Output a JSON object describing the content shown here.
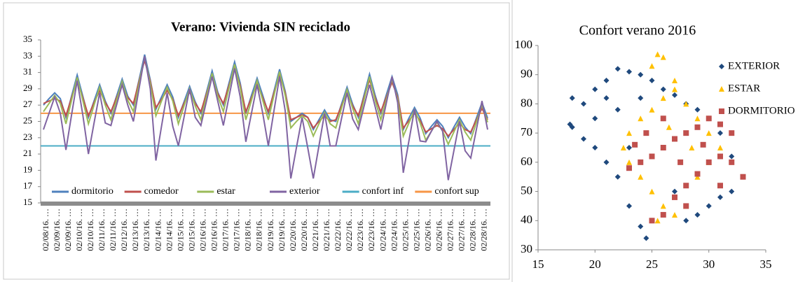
{
  "chart_data": [
    {
      "type": "line",
      "title": "Verano:  Vivienda  SIN reciclado",
      "categories": [
        "02/08/16. …",
        null,
        "02/09/16. …",
        null,
        "02/09/16. …",
        null,
        "02/10/16. …",
        null,
        "02/10/16. …",
        null,
        "02/11/16. …",
        null,
        "02/11/16. …",
        null,
        "02/12/16. …",
        null,
        "02/13/16. …",
        null,
        "02/13/16. …",
        null,
        "02/14/16. …",
        null,
        "02/14/16. …",
        null,
        "02/15/16. …",
        null,
        "02/15/16. …",
        null,
        "02/16/16. …",
        null,
        "02/16/16. …",
        null,
        "02/17/16. …",
        null,
        "02/17/16. …",
        null,
        "02/18/16. …",
        null,
        "02/18/16. …",
        null,
        "02/19/16. …",
        null,
        "02/19/16. …",
        null,
        "02/20/16. …",
        null,
        "02/20/16. …",
        null,
        "02/21/16. …",
        null,
        "02/21/16. …",
        null,
        "02/22/16. …",
        null,
        "02/22/16. …",
        null,
        "02/23/16. …",
        null,
        "02/23/16. …",
        null,
        "02/24/16. …",
        null,
        "02/24/16. …",
        null,
        "02/25/16. …",
        null,
        "02/25/16. …",
        null,
        "02/26/16. …",
        null,
        "02/26/16. …",
        null,
        "02/27/16. …",
        null,
        "02/27/16. …",
        null,
        "02/28/16. …",
        null,
        "02/28/16. …",
        null
      ],
      "series": [
        {
          "name": "dormitorio",
          "color": "#4f81bd",
          "values": [
            27,
            27.8,
            28.5,
            27.8,
            25.5,
            28.1,
            30.7,
            28.1,
            25.5,
            27.5,
            29.5,
            27.5,
            26,
            28.1,
            30.2,
            28.1,
            27,
            30.1,
            33.2,
            30.1,
            26.5,
            28,
            29.5,
            28,
            25.5,
            27.4,
            29.3,
            27.4,
            26,
            28.6,
            31.2,
            28.6,
            27,
            29.7,
            32.3,
            29.7,
            26,
            28.2,
            30.3,
            28.2,
            26,
            28.7,
            31.4,
            28.7,
            25,
            25.5,
            26,
            25.5,
            24,
            25.2,
            26.4,
            25.2,
            25,
            27.1,
            29.2,
            27.1,
            25.5,
            28.2,
            30.8,
            28.2,
            26,
            28.3,
            30.5,
            28.3,
            24,
            25.4,
            26.7,
            25.4,
            23.5,
            24.4,
            25.2,
            24.4,
            23,
            24.3,
            25.5,
            24.3,
            23.5,
            25.4,
            27.3,
            25.4
          ]
        },
        {
          "name": "comedor",
          "color": "#c0504d",
          "values": [
            27.2,
            27.5,
            27.8,
            27.5,
            25.7,
            27.9,
            30,
            27.9,
            25.7,
            27.3,
            28.8,
            27.3,
            26.2,
            27.9,
            29.5,
            27.9,
            27.2,
            29.9,
            32.5,
            29.9,
            26.7,
            27.7,
            28.8,
            27.7,
            25.7,
            27.2,
            28.6,
            27.2,
            26.2,
            28.4,
            30.5,
            28.4,
            27.2,
            29.4,
            31.6,
            29.4,
            26.2,
            27.9,
            29.6,
            27.9,
            26.2,
            28.5,
            30.7,
            28.5,
            25.2,
            25.5,
            25.8,
            25.5,
            24.2,
            25,
            25.7,
            25,
            25.2,
            26.9,
            28.5,
            26.9,
            25.7,
            27.9,
            30.1,
            27.9,
            26.2,
            28,
            29.8,
            28,
            24.2,
            25.1,
            26,
            25.1,
            23.7,
            24.1,
            24.5,
            24.1,
            23.2,
            24,
            24.8,
            24,
            23.7,
            25.2,
            26.6,
            25.2
          ]
        },
        {
          "name": "estar",
          "color": "#9bbb59",
          "values": [
            26.2,
            27.2,
            28.2,
            27.2,
            24.7,
            27.6,
            30.4,
            27.6,
            24.7,
            27,
            29.2,
            27,
            25.2,
            27.6,
            29.9,
            27.6,
            26.2,
            29.6,
            32.9,
            29.6,
            25.7,
            27.5,
            29.2,
            27.5,
            24.7,
            26.9,
            29,
            26.9,
            25.2,
            28.1,
            30.9,
            28.1,
            26.2,
            29.1,
            32,
            29.1,
            25.2,
            27.6,
            30,
            27.6,
            25.2,
            28.2,
            31.1,
            28.2,
            24.2,
            25,
            25.7,
            25,
            23.2,
            24.7,
            26.1,
            24.7,
            24.2,
            26.6,
            28.9,
            26.6,
            24.7,
            27.6,
            30.5,
            27.6,
            25.2,
            27.7,
            30.2,
            27.7,
            23.2,
            24.8,
            26.4,
            24.8,
            22.7,
            23.8,
            24.9,
            23.8,
            22.2,
            23.7,
            25.2,
            23.7,
            22.7,
            24.9,
            27,
            24.9
          ]
        },
        {
          "name": "exterior",
          "color": "#8064a2",
          "values": [
            24,
            26,
            28,
            26,
            21.5,
            25.8,
            30,
            25.8,
            21,
            24.8,
            28.5,
            24.8,
            24.5,
            27,
            29.5,
            27,
            25,
            29,
            33,
            29,
            20.2,
            24.4,
            28.5,
            24.4,
            22,
            25.5,
            29,
            25.5,
            24.5,
            27.5,
            30.5,
            27.5,
            24.5,
            28,
            31.5,
            28,
            22.5,
            26,
            29.5,
            26,
            22,
            26.3,
            30.5,
            26.3,
            18,
            21.8,
            25.5,
            21.8,
            18,
            22,
            26,
            22,
            22,
            25.3,
            28.5,
            25.3,
            24,
            26.8,
            29.5,
            26.8,
            24,
            27.3,
            30.5,
            27.3,
            18.7,
            22.6,
            26.5,
            22.6,
            22.5,
            23.8,
            25,
            23.8,
            17.8,
            21.4,
            25,
            21.4,
            20.5,
            24,
            27.5,
            24
          ]
        }
      ],
      "reference_lines": [
        {
          "name": "confort inf",
          "color": "#4bacc6",
          "value": 22
        },
        {
          "name": "confort sup",
          "color": "#f79646",
          "value": 26
        }
      ],
      "ylim": [
        15,
        35
      ],
      "yticks": [
        15,
        17,
        19,
        21,
        23,
        25,
        27,
        29,
        31,
        33,
        35
      ],
      "grid": false,
      "legend": "bottom"
    },
    {
      "type": "scatter",
      "title": "Confort verano 2016",
      "series": [
        {
          "name": "EXTERIOR",
          "color": "#1f497d",
          "marker": "diamond",
          "x": [
            18,
            19,
            20,
            21,
            22,
            23,
            24,
            25,
            26,
            27,
            28,
            29,
            30,
            31,
            32,
            33,
            32,
            30,
            29,
            28,
            27,
            25,
            24.5,
            24,
            23,
            22,
            21,
            20,
            19,
            18,
            17.8,
            23,
            26,
            22,
            24,
            28,
            31,
            20,
            21
          ],
          "y": [
            82,
            80,
            85,
            88,
            92,
            91,
            90,
            88,
            85,
            83,
            80,
            78,
            75,
            70,
            62,
            55,
            50,
            45,
            42,
            45,
            50,
            40,
            34,
            38,
            45,
            55,
            60,
            65,
            68,
            72,
            73,
            65,
            75,
            78,
            82,
            40,
            48,
            75,
            82
          ]
        },
        {
          "name": "ESTAR",
          "color": "#ffc000",
          "marker": "triangle",
          "x": [
            25.5,
            26,
            25,
            27,
            26,
            25,
            24,
            23,
            22.5,
            23,
            24,
            25,
            26,
            27,
            28,
            29,
            30,
            31,
            30,
            29,
            28,
            27,
            25.5,
            26.5,
            28.5
          ],
          "y": [
            97,
            96,
            93,
            85,
            82,
            78,
            75,
            70,
            65,
            60,
            55,
            50,
            45,
            42,
            45,
            55,
            60,
            65,
            70,
            75,
            80,
            88,
            40,
            72,
            65
          ]
        },
        {
          "name": "DORMITORIO",
          "color": "#c0504d",
          "marker": "square",
          "x": [
            25,
            26,
            27,
            28,
            29,
            30,
            31,
            32,
            33,
            32,
            31,
            30,
            29,
            28,
            27,
            26,
            25,
            24,
            23,
            23.5,
            24.5,
            26,
            27.5,
            29.5,
            31,
            28
          ],
          "y": [
            40,
            42,
            48,
            52,
            56,
            60,
            62,
            60,
            55,
            70,
            73,
            75,
            72,
            70,
            68,
            65,
            62,
            60,
            58,
            66,
            70,
            75,
            60,
            66,
            52,
            45
          ]
        }
      ],
      "xlim": [
        15,
        35
      ],
      "xticks": [
        15,
        20,
        25,
        30,
        35
      ],
      "ylim": [
        30,
        100
      ],
      "yticks": [
        30,
        40,
        50,
        60,
        70,
        80,
        90,
        100
      ],
      "grid": false,
      "legend": "top-right"
    }
  ]
}
